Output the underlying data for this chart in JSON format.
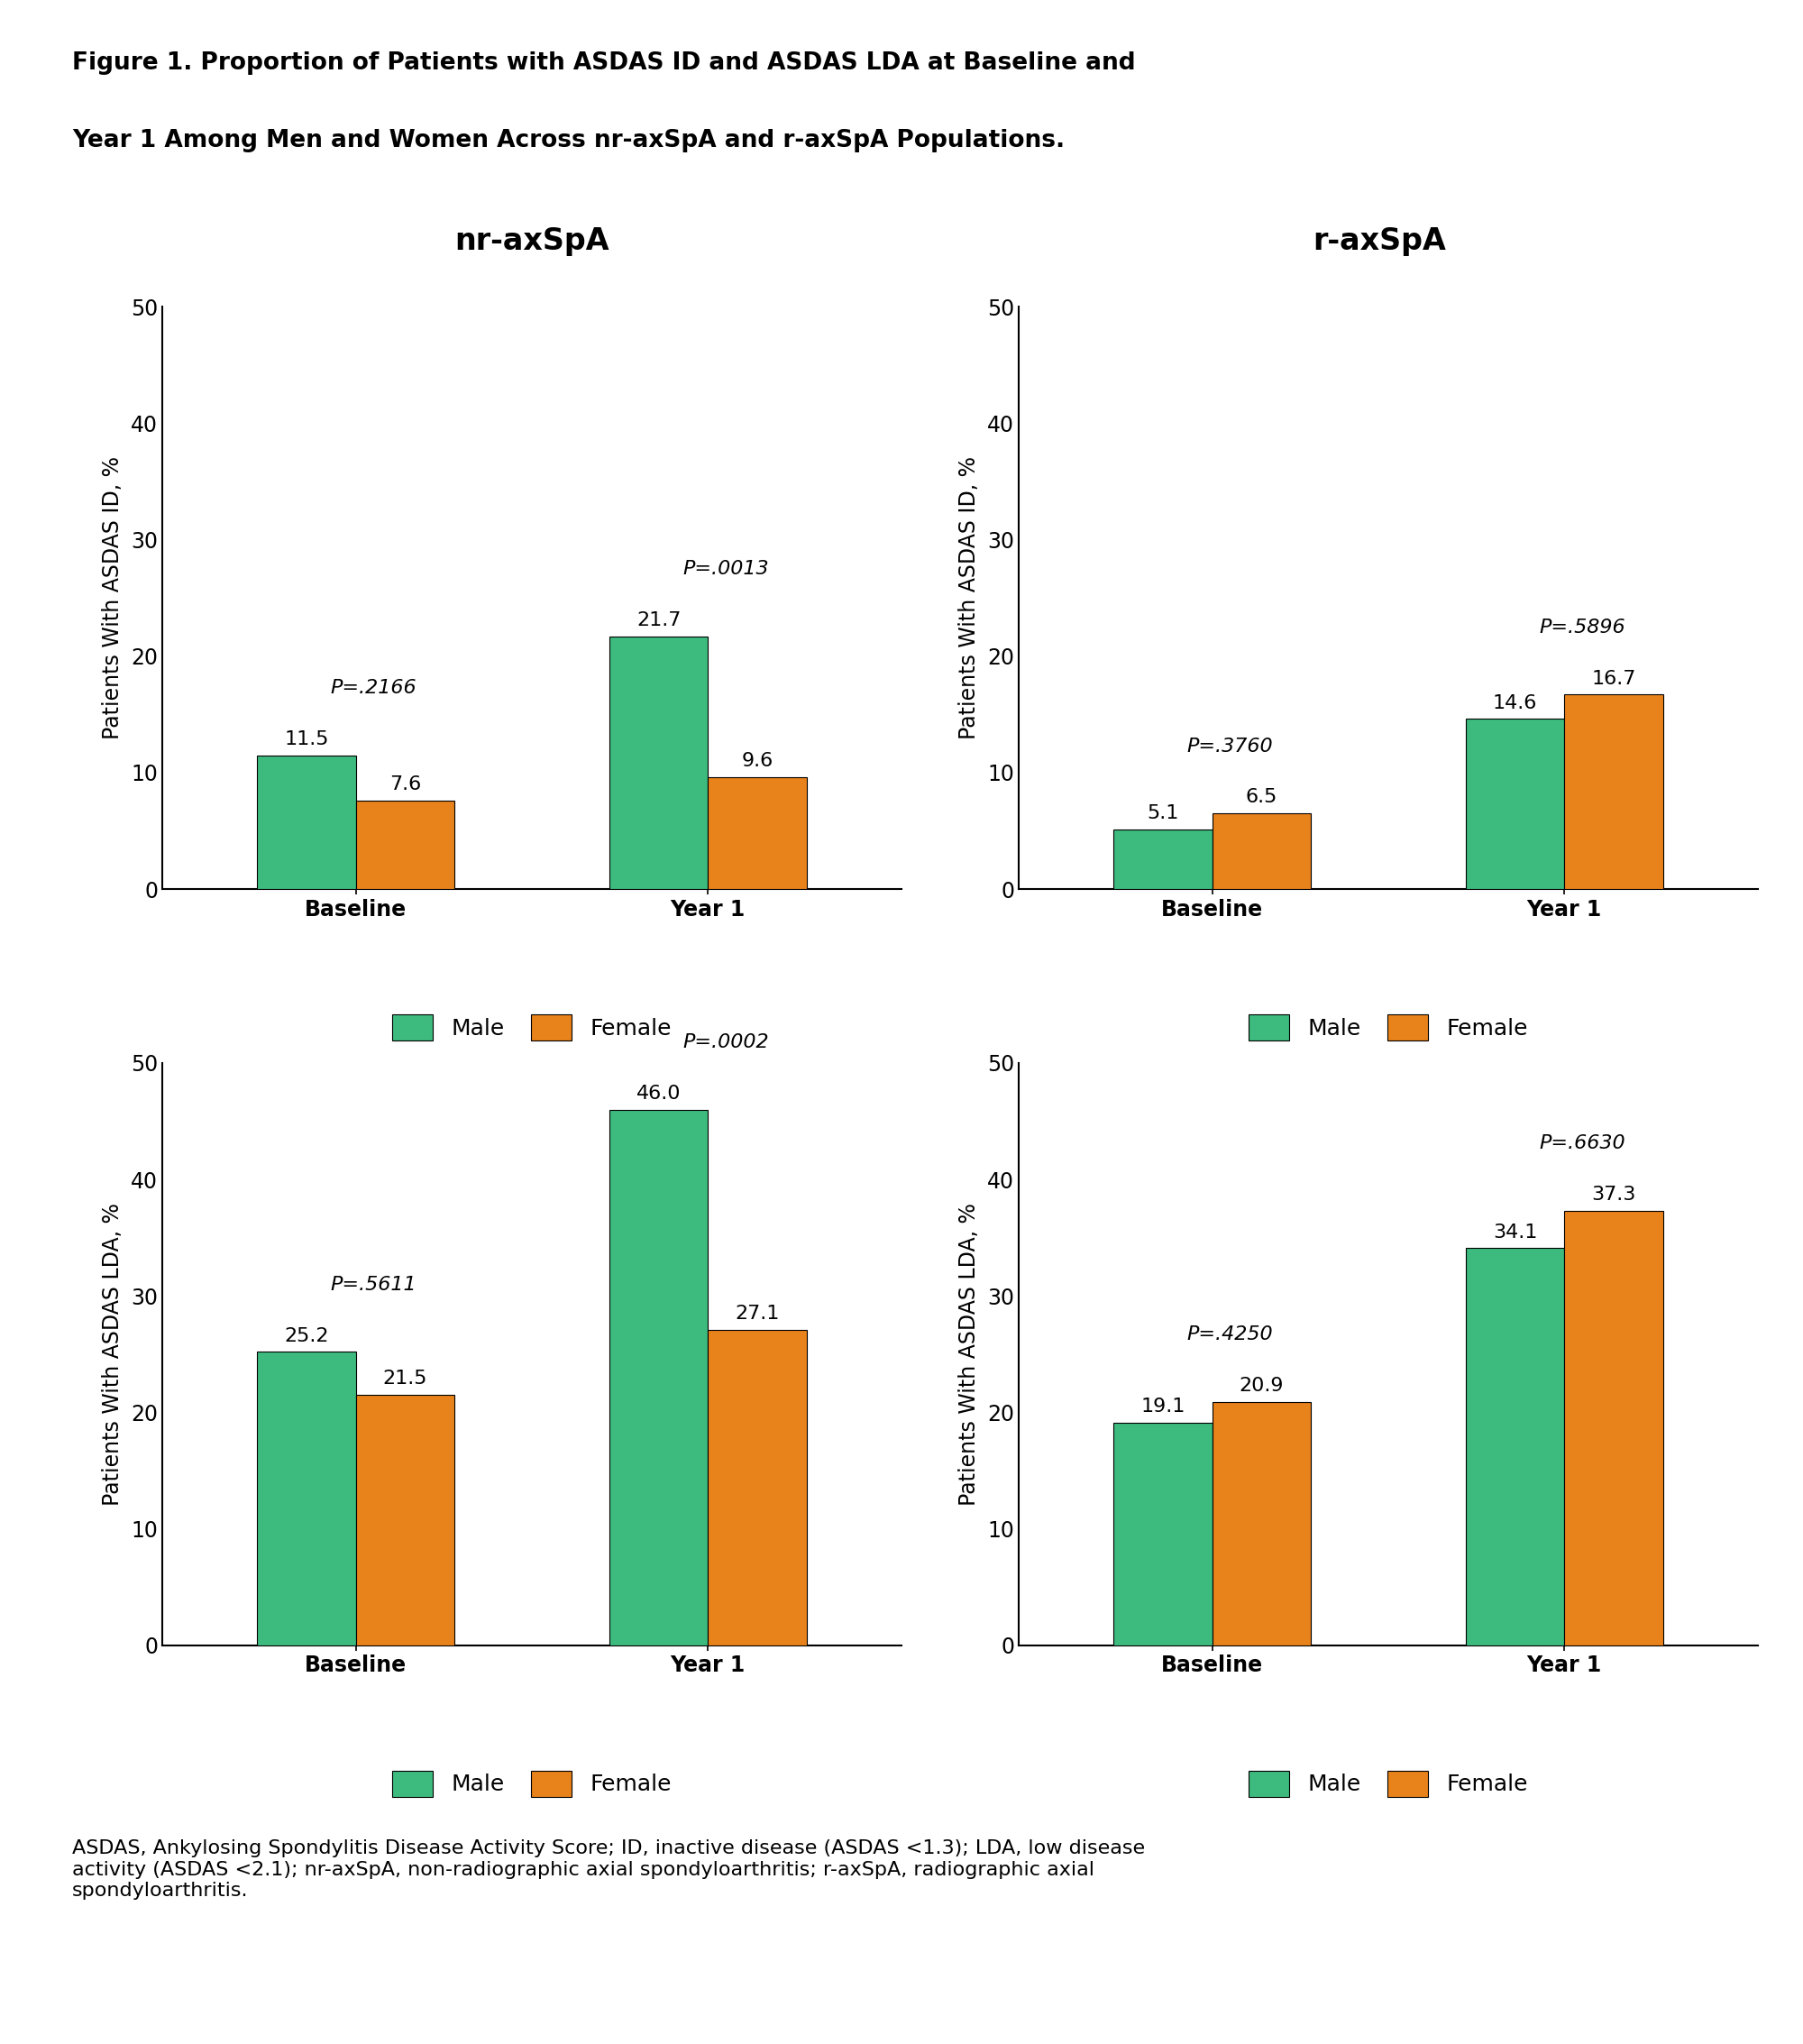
{
  "title_line1": "Figure 1. Proportion of Patients with ASDAS ID and ASDAS LDA at Baseline and",
  "title_line2": "Year 1 Among Men and Women Across nr-axSpA and r-axSpA Populations.",
  "footnote": "ASDAS, Ankylosing Spondylitis Disease Activity Score; ID, inactive disease (ASDAS <1.3); LDA, low disease\nactivity (ASDAS <2.1); nr-axSpA, non-radiographic axial spondyloarthritis; r-axSpA, radiographic axial\nspondyloarthritis.",
  "col_titles": [
    "nr-axSpA",
    "r-axSpA"
  ],
  "subplots": [
    {
      "row": 0,
      "col": 0,
      "ylabel": "Patients With ASDAS ID, %",
      "ylim": [
        0,
        50
      ],
      "yticks": [
        0,
        10,
        20,
        30,
        40,
        50
      ],
      "groups": [
        "Baseline",
        "Year 1"
      ],
      "male_values": [
        11.5,
        21.7
      ],
      "female_values": [
        7.6,
        9.6
      ],
      "p_values": [
        "P=.2166",
        "P=.0013"
      ]
    },
    {
      "row": 0,
      "col": 1,
      "ylabel": "Patients With ASDAS ID, %",
      "ylim": [
        0,
        50
      ],
      "yticks": [
        0,
        10,
        20,
        30,
        40,
        50
      ],
      "groups": [
        "Baseline",
        "Year 1"
      ],
      "male_values": [
        5.1,
        14.6
      ],
      "female_values": [
        6.5,
        16.7
      ],
      "p_values": [
        "P=.3760",
        "P=.5896"
      ]
    },
    {
      "row": 1,
      "col": 0,
      "ylabel": "Patients With ASDAS LDA, %",
      "ylim": [
        0,
        50
      ],
      "yticks": [
        0,
        10,
        20,
        30,
        40,
        50
      ],
      "groups": [
        "Baseline",
        "Year 1"
      ],
      "male_values": [
        25.2,
        46.0
      ],
      "female_values": [
        21.5,
        27.1
      ],
      "p_values": [
        "P=.5611",
        "P=.0002"
      ]
    },
    {
      "row": 1,
      "col": 1,
      "ylabel": "Patients With ASDAS LDA, %",
      "ylim": [
        0,
        50
      ],
      "yticks": [
        0,
        10,
        20,
        30,
        40,
        50
      ],
      "groups": [
        "Baseline",
        "Year 1"
      ],
      "male_values": [
        19.1,
        34.1
      ],
      "female_values": [
        20.9,
        37.3
      ],
      "p_values": [
        "P=.4250",
        "P=.6630"
      ]
    }
  ],
  "male_color": "#3DBA7E",
  "female_color": "#E8821A",
  "bar_width": 0.28,
  "background_color": "#ffffff",
  "title_fontsize": 19,
  "col_title_fontsize": 24,
  "axis_label_fontsize": 17,
  "tick_fontsize": 17,
  "bar_label_fontsize": 16,
  "p_value_fontsize": 16,
  "legend_fontsize": 18,
  "footnote_fontsize": 16
}
